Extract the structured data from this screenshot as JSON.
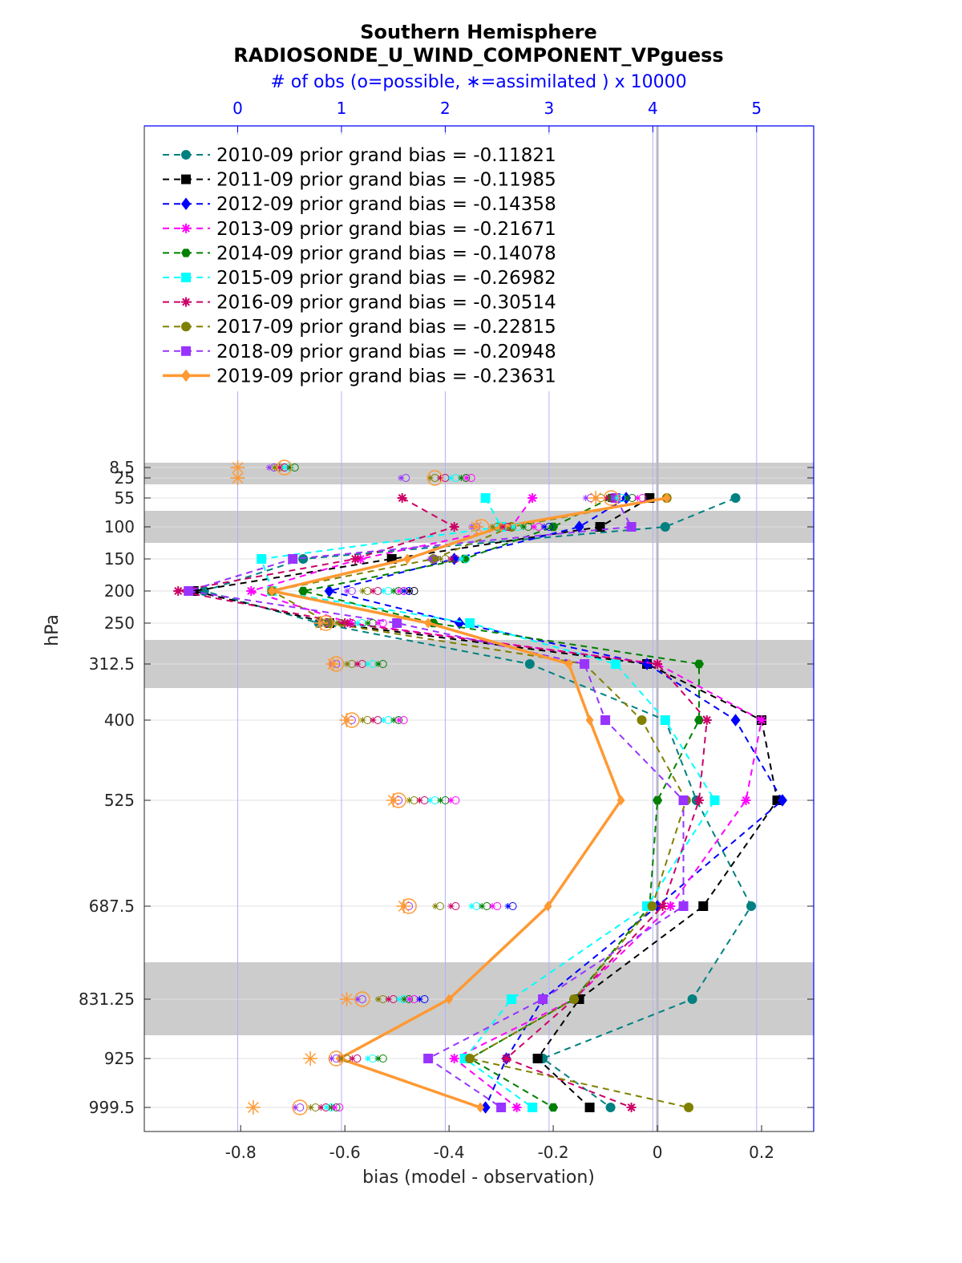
{
  "chart_data": {
    "type": "line",
    "title": "Southern Hemisphere",
    "subtitle": "RADIOSONDE_U_WIND_COMPONENT_VPguess",
    "top_axis_label": "# of obs (o=possible, ∗=assimilated ) x 10000",
    "xlabel": "bias (model - observation)",
    "ylabel": "hPa",
    "xlim": [
      -0.985,
      0.3
    ],
    "x_ticks": [
      "-0.8",
      "-0.6",
      "-0.4",
      "-0.2",
      "0",
      "0.2"
    ],
    "x_tick_values": [
      -0.8,
      -0.6,
      -0.4,
      -0.2,
      0,
      0.2
    ],
    "top_ticks": [
      "0",
      "1",
      "2",
      "3",
      "4",
      "5"
    ],
    "top_tick_values": [
      0,
      1,
      2,
      3,
      4,
      5
    ],
    "top_xlim": [
      -0.9,
      5.55
    ],
    "levels": [
      "8.5",
      "25",
      "55",
      "100",
      "150",
      "200",
      "250",
      "312.5",
      "400",
      "525",
      "687.5",
      "831.25",
      "925",
      "999.5"
    ],
    "level_values": [
      8.5,
      25,
      55,
      100,
      150,
      200,
      250,
      312.5,
      400,
      525,
      687.5,
      831.25,
      925,
      999.5
    ],
    "series": [
      {
        "name": "2010-09 prior grand bias = -0.11821",
        "color": "#008080",
        "marker": "circle",
        "line": "dashed",
        "values": [
          null,
          null,
          0.15,
          0.015,
          -0.68,
          -0.87,
          -0.65,
          -0.245,
          0.015,
          0.075,
          0.18,
          0.067,
          -0.22,
          -0.09
        ],
        "obs_possible": [
          0.55,
          2.25,
          null,
          null,
          null,
          null,
          null,
          null,
          null,
          null,
          null,
          null,
          null,
          null
        ],
        "obs_assimilated": [
          null,
          null,
          null,
          null,
          null,
          null,
          null,
          null,
          null,
          null,
          null,
          null,
          null,
          null
        ]
      },
      {
        "name": "2011-09 prior grand bias = -0.11985",
        "color": "#000000",
        "marker": "square",
        "line": "dashed",
        "values": [
          null,
          null,
          -0.015,
          -0.11,
          -0.51,
          -0.89,
          -0.63,
          -0.02,
          0.2,
          0.23,
          0.088,
          -0.15,
          -0.23,
          -0.13
        ],
        "obs_possible": [
          null,
          null,
          null,
          null,
          null,
          null,
          null,
          null,
          null,
          null,
          null,
          null,
          null,
          null
        ],
        "obs_assimilated": [
          null,
          null,
          null,
          null,
          null,
          null,
          null,
          null,
          null,
          null,
          null,
          null,
          null,
          null
        ]
      },
      {
        "name": "2012-09 prior grand bias = -0.14358",
        "color": "#0000ff",
        "marker": "diamond",
        "line": "dashed",
        "values": [
          null,
          null,
          -0.06,
          -0.15,
          -0.39,
          -0.63,
          -0.38,
          -0.02,
          0.15,
          0.24,
          0.0,
          -0.22,
          -0.29,
          -0.33
        ],
        "obs_possible": [
          null,
          null,
          null,
          null,
          null,
          null,
          null,
          null,
          null,
          null,
          null,
          null,
          null,
          null
        ],
        "obs_assimilated": [
          null,
          null,
          null,
          null,
          null,
          null,
          null,
          null,
          null,
          null,
          null,
          null,
          null,
          null
        ]
      },
      {
        "name": "2013-09 prior grand bias = -0.21671",
        "color": "#ff00ff",
        "marker": "star",
        "line": "dashed",
        "values": [
          null,
          null,
          -0.24,
          -0.28,
          -0.57,
          -0.78,
          -0.59,
          0.0,
          0.2,
          0.17,
          0.025,
          -0.16,
          -0.39,
          -0.27
        ],
        "obs_possible": [
          null,
          null,
          null,
          null,
          null,
          null,
          null,
          null,
          null,
          null,
          null,
          null,
          null,
          null
        ],
        "obs_assimilated": [
          null,
          null,
          null,
          null,
          null,
          null,
          null,
          null,
          null,
          null,
          null,
          null,
          null,
          null
        ]
      },
      {
        "name": "2014-09 prior grand bias = -0.14078",
        "color": "#008000",
        "marker": "hexagon",
        "line": "dashed",
        "values": [
          null,
          null,
          -0.09,
          -0.2,
          -0.37,
          -0.68,
          -0.43,
          0.08,
          0.08,
          0.0,
          -0.015,
          -0.16,
          -0.36,
          -0.2
        ],
        "obs_possible": [
          null,
          null,
          null,
          null,
          null,
          null,
          null,
          null,
          null,
          null,
          null,
          null,
          null,
          null
        ],
        "obs_assimilated": [
          null,
          null,
          null,
          null,
          null,
          null,
          null,
          null,
          null,
          null,
          null,
          null,
          null,
          null
        ]
      },
      {
        "name": "2015-09 prior grand bias = -0.26982",
        "color": "#00ffff",
        "marker": "square",
        "line": "dashed",
        "values": [
          null,
          null,
          -0.33,
          -0.3,
          -0.76,
          -0.74,
          -0.36,
          -0.08,
          0.015,
          0.11,
          -0.02,
          -0.28,
          -0.37,
          -0.24
        ],
        "obs_possible": [
          null,
          null,
          null,
          null,
          null,
          null,
          null,
          null,
          null,
          null,
          null,
          null,
          null,
          null
        ],
        "obs_assimilated": [
          null,
          null,
          null,
          null,
          null,
          null,
          null,
          null,
          null,
          null,
          null,
          null,
          null,
          null
        ]
      },
      {
        "name": "2016-09 prior grand bias = -0.30514",
        "color": "#cc0066",
        "marker": "star",
        "line": "dashed",
        "values": [
          null,
          null,
          -0.49,
          -0.39,
          -0.58,
          -0.92,
          -0.6,
          0.0,
          0.095,
          0.08,
          0.01,
          -0.16,
          -0.29,
          -0.05
        ],
        "obs_possible": [
          null,
          null,
          null,
          null,
          null,
          null,
          null,
          null,
          null,
          null,
          null,
          null,
          null,
          null
        ],
        "obs_assimilated": [
          null,
          null,
          null,
          null,
          null,
          null,
          null,
          null,
          null,
          null,
          null,
          null,
          null,
          null
        ]
      },
      {
        "name": "2017-09 prior grand bias = -0.22815",
        "color": "#808000",
        "marker": "circle",
        "line": "dashed",
        "values": [
          null,
          null,
          0.018,
          -0.28,
          -0.43,
          -0.74,
          -0.63,
          -0.14,
          -0.03,
          0.055,
          -0.01,
          -0.16,
          -0.36,
          0.06
        ],
        "obs_possible": [
          null,
          null,
          null,
          null,
          null,
          null,
          null,
          null,
          null,
          null,
          null,
          null,
          null,
          null
        ],
        "obs_assimilated": [
          null,
          null,
          null,
          null,
          null,
          null,
          null,
          null,
          null,
          null,
          null,
          null,
          null,
          null
        ]
      },
      {
        "name": "2018-09 prior grand bias = -0.20948",
        "color": "#9933ff",
        "marker": "square",
        "line": "dashed",
        "values": [
          null,
          null,
          -0.08,
          -0.05,
          -0.7,
          -0.9,
          -0.5,
          -0.14,
          -0.1,
          0.05,
          0.05,
          -0.22,
          -0.44,
          -0.3
        ],
        "obs_possible": [
          null,
          null,
          null,
          null,
          null,
          null,
          null,
          null,
          null,
          null,
          null,
          null,
          null,
          null
        ],
        "obs_assimilated": [
          null,
          null,
          null,
          null,
          null,
          null,
          null,
          null,
          null,
          null,
          null,
          null,
          null,
          null
        ]
      },
      {
        "name": "2019-09 prior grand bias = -0.23631",
        "color": "#ff9933",
        "marker": "diamond",
        "line": "solid",
        "values": [
          null,
          null,
          0.018,
          -0.3,
          -0.48,
          -0.74,
          -0.44,
          -0.17,
          -0.13,
          -0.07,
          -0.21,
          -0.4,
          -0.61,
          -0.34
        ],
        "obs_possible": [
          0.45,
          1.9,
          3.6,
          2.35,
          null,
          null,
          0.85,
          0.95,
          1.1,
          1.55,
          1.65,
          1.2,
          0.95,
          0.6
        ],
        "obs_assimilated": [
          0.0,
          0.0,
          3.45,
          2.3,
          null,
          null,
          0.8,
          0.92,
          1.05,
          1.5,
          1.6,
          1.05,
          0.7,
          0.15
        ]
      }
    ],
    "obs_possible_clusters": [
      [
        0.35,
        0.4,
        0.45,
        0.5,
        0.55
      ],
      [
        1.62,
        1.9,
        2.0,
        2.1,
        2.2,
        2.25
      ],
      [
        3.4,
        3.5,
        3.6,
        3.7,
        3.8,
        3.9
      ],
      [
        2.3,
        2.5,
        2.6,
        2.7,
        2.8,
        2.9,
        3.0
      ],
      [
        1.9,
        2.0,
        2.1,
        2.2
      ],
      [
        1.1,
        1.25,
        1.35,
        1.45,
        1.55,
        1.6,
        1.65,
        1.7
      ],
      [
        0.85,
        1.0,
        1.1,
        1.2,
        1.3,
        1.4
      ],
      [
        0.95,
        1.1,
        1.2,
        1.3,
        1.4
      ],
      [
        1.1,
        1.25,
        1.35,
        1.45,
        1.55,
        1.6
      ],
      [
        1.55,
        1.7,
        1.8,
        1.9,
        2.0,
        2.1
      ],
      [
        1.65,
        1.95,
        2.1,
        2.3,
        2.4,
        2.5,
        2.65
      ],
      [
        1.2,
        1.4,
        1.5,
        1.6,
        1.65,
        1.7,
        1.8
      ],
      [
        0.95,
        1.05,
        1.15,
        1.3,
        1.4
      ],
      [
        0.6,
        0.75,
        0.85,
        0.9,
        0.95,
        0.98
      ]
    ],
    "grid": true,
    "legend_position": "top-left"
  }
}
